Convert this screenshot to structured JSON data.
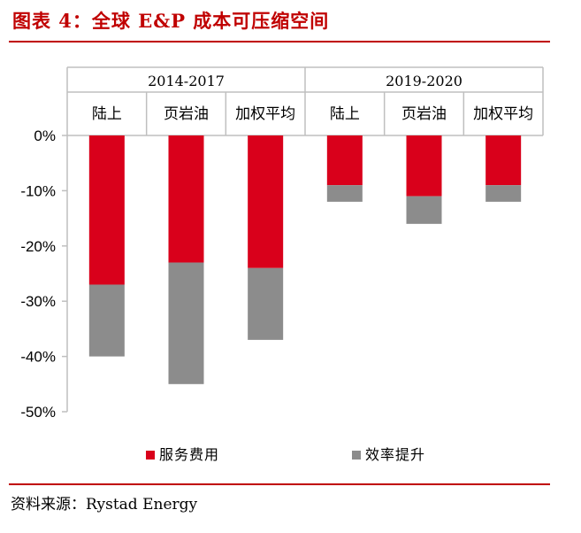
{
  "header": {
    "title": "图表 4：全球 E&P 成本可压缩空间"
  },
  "footer": {
    "source": "资料来源：Rystad Energy"
  },
  "colors": {
    "accent": "#c00000",
    "service": "#d9001b",
    "efficiency": "#8c8c8c",
    "axis": "#bfbfbf"
  },
  "chart_data": {
    "type": "bar",
    "stacked": true,
    "groups": [
      {
        "label": "2014-2017",
        "categories": [
          "陆上",
          "页岩油",
          "加权平均"
        ]
      },
      {
        "label": "2019-2020",
        "categories": [
          "陆上",
          "页岩油",
          "加权平均"
        ]
      }
    ],
    "categories": [
      "陆上",
      "页岩油",
      "加权平均",
      "陆上",
      "页岩油",
      "加权平均"
    ],
    "series": [
      {
        "name": "服务费用",
        "color": "#d9001b",
        "values": [
          -27,
          -23,
          -24,
          -9,
          -11,
          -9
        ]
      },
      {
        "name": "效率提升",
        "color": "#8c8c8c",
        "values": [
          -13,
          -22,
          -13,
          -3,
          -5,
          -3
        ]
      }
    ],
    "ylim": [
      -50,
      0
    ],
    "yticks": [
      0,
      -10,
      -20,
      -30,
      -40,
      -50
    ],
    "ytick_labels": [
      "0%",
      "-10%",
      "-20%",
      "-30%",
      "-40%",
      "-50%"
    ],
    "legend_position": "bottom"
  }
}
